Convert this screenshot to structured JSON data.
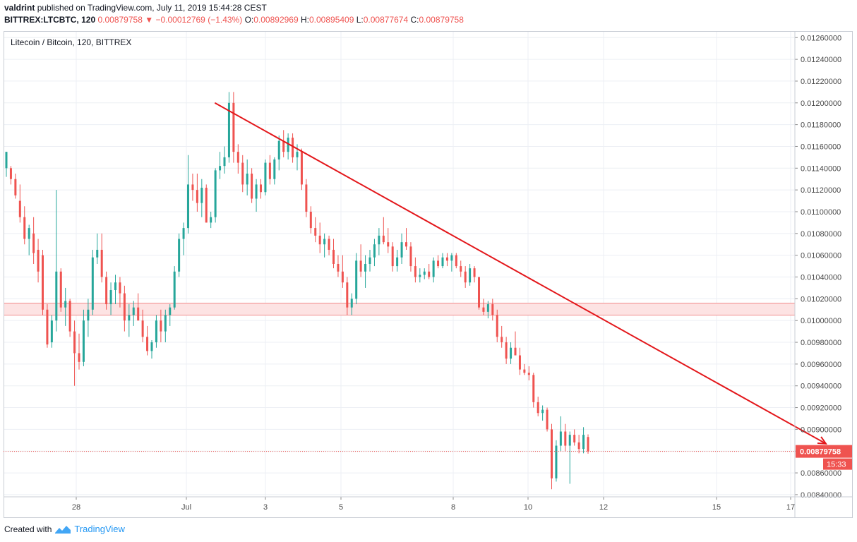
{
  "header": {
    "author": "valdrint",
    "published": "published on TradingView.com, July 11, 2019 15:44:28 CEST",
    "symbol": "BITTREX:LTCBTC, 120",
    "last": "0.00879758",
    "change_arrow": "▼",
    "change": "−0.00012769 (−1.43%)",
    "o_label": "O:",
    "o_value": "0.00892969",
    "h_label": "H:",
    "h_value": "0.00895409",
    "l_label": "L:",
    "l_value": "0.00877674",
    "c_label": "C:",
    "c_value": "0.00879758"
  },
  "footer": {
    "created_with": "Created with",
    "brand": "TradingView",
    "logo_icon": "tradingview-logo-icon"
  },
  "colors": {
    "up": "#26a69a",
    "down": "#ef5350",
    "trendline": "#e3171b",
    "zone_fill": "#fde3e3",
    "zone_border": "#f28b8b",
    "grid": "#eceff4",
    "axis_text": "#4a4a4a"
  },
  "chart_data": {
    "type": "candlestick",
    "title": "Litecoin / Bitcoin, 120, BITTREX",
    "x_ticks": [
      "28",
      "Jul",
      "3",
      "5",
      "8",
      "10",
      "12",
      "15",
      "17"
    ],
    "y_ticks": [
      "0.00840000",
      "0.00860000",
      "0.00880000",
      "0.00900000",
      "0.00920000",
      "0.00940000",
      "0.00960000",
      "0.00980000",
      "0.01000000",
      "0.01020000",
      "0.01040000",
      "0.01060000",
      "0.01080000",
      "0.01100000",
      "0.01120000",
      "0.01140000",
      "0.01160000",
      "0.01180000",
      "0.01200000",
      "0.01220000",
      "0.01240000",
      "0.01260000"
    ],
    "ylim": [
      0.00838,
      0.01266
    ],
    "current_price_label": "0.00879758",
    "countdown_label": "15:33",
    "current_price": 0.00879758,
    "resistance_zone": [
      0.01005,
      0.01016
    ],
    "trendline": {
      "start_tick": 1.36,
      "start_value": 0.012,
      "end_tick": 8.0,
      "end_value": 0.00892
    },
    "series": [
      [
        0.0114,
        0.01155,
        0.01132,
        0.01155
      ],
      [
        0.0114,
        0.01142,
        0.01125,
        0.0113
      ],
      [
        0.0113,
        0.01135,
        0.01112,
        0.01115
      ],
      [
        0.0111,
        0.01125,
        0.0109,
        0.01095
      ],
      [
        0.01095,
        0.01105,
        0.0107,
        0.01075
      ],
      [
        0.01075,
        0.01088,
        0.0106,
        0.01085
      ],
      [
        0.0108,
        0.01095,
        0.01052,
        0.01062
      ],
      [
        0.01065,
        0.01075,
        0.01035,
        0.01045
      ],
      [
        0.0106,
        0.01065,
        0.01005,
        0.0101
      ],
      [
        0.0101,
        0.01015,
        0.00975,
        0.00978
      ],
      [
        0.0098,
        0.01005,
        0.00975,
        0.01
      ],
      [
        0.01,
        0.0112,
        0.0099,
        0.01045
      ],
      [
        0.01045,
        0.01048,
        0.01008,
        0.01012
      ],
      [
        0.01012,
        0.0103,
        0.00995,
        0.01018
      ],
      [
        0.01018,
        0.0102,
        0.00985,
        0.0099
      ],
      [
        0.0099,
        0.01,
        0.0094,
        0.0097
      ],
      [
        0.0097,
        0.00988,
        0.00955,
        0.00962
      ],
      [
        0.00962,
        0.0101,
        0.00958,
        0.01
      ],
      [
        0.01,
        0.0102,
        0.00985,
        0.0101
      ],
      [
        0.0101,
        0.01065,
        0.01005,
        0.01058
      ],
      [
        0.01058,
        0.0108,
        0.01052,
        0.01065
      ],
      [
        0.01065,
        0.0108,
        0.01035,
        0.0104
      ],
      [
        0.0104,
        0.01045,
        0.0101,
        0.01015
      ],
      [
        0.01015,
        0.01035,
        0.01005,
        0.01028
      ],
      [
        0.01028,
        0.01042,
        0.01015,
        0.01035
      ],
      [
        0.01035,
        0.0104,
        0.01012,
        0.01025
      ],
      [
        0.01025,
        0.01032,
        0.0099,
        0.01
      ],
      [
        0.01,
        0.01015,
        0.00985,
        0.01005
      ],
      [
        0.01005,
        0.01018,
        0.00995,
        0.01012
      ],
      [
        0.01012,
        0.01025,
        0.01002,
        0.01
      ],
      [
        0.01,
        0.0101,
        0.0098,
        0.00985
      ],
      [
        0.00985,
        0.00995,
        0.00968,
        0.00972
      ],
      [
        0.00972,
        0.00982,
        0.00965,
        0.0098
      ],
      [
        0.0098,
        0.01005,
        0.00975,
        0.01
      ],
      [
        0.01,
        0.0101,
        0.0098,
        0.0099
      ],
      [
        0.0099,
        0.0101,
        0.0098,
        0.01005
      ],
      [
        0.01005,
        0.01015,
        0.00995,
        0.01012
      ],
      [
        0.01012,
        0.0105,
        0.0101,
        0.01045
      ],
      [
        0.01045,
        0.0108,
        0.0104,
        0.01075
      ],
      [
        0.01075,
        0.0109,
        0.0106,
        0.01085
      ],
      [
        0.01085,
        0.01152,
        0.0108,
        0.01125
      ],
      [
        0.01125,
        0.01135,
        0.0111,
        0.0112
      ],
      [
        0.0112,
        0.01135,
        0.011,
        0.01108
      ],
      [
        0.01108,
        0.0113,
        0.01095,
        0.01122
      ],
      [
        0.01122,
        0.01125,
        0.0109,
        0.0109
      ],
      [
        0.0109,
        0.011,
        0.01085,
        0.01095
      ],
      [
        0.01095,
        0.0114,
        0.0109,
        0.01138
      ],
      [
        0.01138,
        0.01155,
        0.0113,
        0.01142
      ],
      [
        0.01142,
        0.0116,
        0.01135,
        0.0115
      ],
      [
        0.0115,
        0.0121,
        0.01145,
        0.012
      ],
      [
        0.012,
        0.0121,
        0.01145,
        0.01155
      ],
      [
        0.01155,
        0.01162,
        0.01135,
        0.01145
      ],
      [
        0.01145,
        0.01152,
        0.01118,
        0.01125
      ],
      [
        0.01125,
        0.01148,
        0.01115,
        0.01135
      ],
      [
        0.01135,
        0.0114,
        0.01108,
        0.01112
      ],
      [
        0.01112,
        0.0113,
        0.011,
        0.01125
      ],
      [
        0.01125,
        0.0113,
        0.01112,
        0.01118
      ],
      [
        0.01118,
        0.01148,
        0.01115,
        0.01145
      ],
      [
        0.01145,
        0.01152,
        0.01125,
        0.0113
      ],
      [
        0.0113,
        0.0115,
        0.01125,
        0.01148
      ],
      [
        0.01148,
        0.0117,
        0.01138,
        0.01165
      ],
      [
        0.01165,
        0.01175,
        0.0115,
        0.01155
      ],
      [
        0.01155,
        0.01172,
        0.01148,
        0.01168
      ],
      [
        0.01168,
        0.01172,
        0.01145,
        0.0115
      ],
      [
        0.0115,
        0.01162,
        0.01138,
        0.01155
      ],
      [
        0.01155,
        0.01158,
        0.0112,
        0.01125
      ],
      [
        0.01125,
        0.0113,
        0.01095,
        0.011
      ],
      [
        0.011,
        0.01105,
        0.0108,
        0.01085
      ],
      [
        0.01085,
        0.01095,
        0.01072,
        0.01078
      ],
      [
        0.01078,
        0.0109,
        0.01062,
        0.0107
      ],
      [
        0.0107,
        0.0108,
        0.01058,
        0.01075
      ],
      [
        0.01075,
        0.01078,
        0.0106,
        0.01065
      ],
      [
        0.01065,
        0.01075,
        0.01048,
        0.01052
      ],
      [
        0.01052,
        0.0106,
        0.0104,
        0.01045
      ],
      [
        0.01045,
        0.0106,
        0.0103,
        0.01035
      ],
      [
        0.01035,
        0.0104,
        0.01005,
        0.01012
      ],
      [
        0.01012,
        0.01025,
        0.01005,
        0.0102
      ],
      [
        0.0102,
        0.01062,
        0.01015,
        0.01055
      ],
      [
        0.01055,
        0.0107,
        0.0104,
        0.01045
      ],
      [
        0.01045,
        0.0106,
        0.0103,
        0.01052
      ],
      [
        0.01052,
        0.01065,
        0.01045,
        0.01058
      ],
      [
        0.01058,
        0.01075,
        0.0105,
        0.0107
      ],
      [
        0.0107,
        0.01085,
        0.0106,
        0.01078
      ],
      [
        0.01078,
        0.01095,
        0.0107,
        0.01072
      ],
      [
        0.01072,
        0.01085,
        0.01062,
        0.01068
      ],
      [
        0.01068,
        0.01072,
        0.01045,
        0.0105
      ],
      [
        0.0105,
        0.01065,
        0.01045,
        0.01058
      ],
      [
        0.01058,
        0.0108,
        0.01052,
        0.01072
      ],
      [
        0.01072,
        0.01085,
        0.01065,
        0.01068
      ],
      [
        0.01068,
        0.01072,
        0.01045,
        0.0105
      ],
      [
        0.0105,
        0.01058,
        0.01035,
        0.0104
      ],
      [
        0.0104,
        0.01048,
        0.01035,
        0.01042
      ],
      [
        0.01042,
        0.01048,
        0.01038,
        0.01045
      ],
      [
        0.01045,
        0.01052,
        0.01038,
        0.0104
      ],
      [
        0.0104,
        0.01058,
        0.01035,
        0.01055
      ],
      [
        0.01055,
        0.0106,
        0.01048,
        0.0105
      ],
      [
        0.0105,
        0.01062,
        0.01048,
        0.01058
      ],
      [
        0.01058,
        0.01062,
        0.0105,
        0.01055
      ],
      [
        0.01055,
        0.01062,
        0.01045,
        0.0106
      ],
      [
        0.0106,
        0.01062,
        0.01048,
        0.0105
      ],
      [
        0.0105,
        0.01055,
        0.0104,
        0.01045
      ],
      [
        0.01045,
        0.0105,
        0.0103,
        0.01035
      ],
      [
        0.01035,
        0.01052,
        0.01032,
        0.01048
      ],
      [
        0.01048,
        0.0105,
        0.01035,
        0.0104
      ],
      [
        0.0104,
        0.0104,
        0.0101,
        0.01012
      ],
      [
        0.01012,
        0.0102,
        0.01005,
        0.01008
      ],
      [
        0.01008,
        0.01018,
        0.01002,
        0.01015
      ],
      [
        0.01015,
        0.0102,
        0.01,
        0.01005
      ],
      [
        0.01005,
        0.0101,
        0.0098,
        0.00985
      ],
      [
        0.00985,
        0.00995,
        0.00975,
        0.0098
      ],
      [
        0.0098,
        0.00985,
        0.0096,
        0.00965
      ],
      [
        0.00965,
        0.0098,
        0.0096,
        0.00975
      ],
      [
        0.00975,
        0.0099,
        0.0097,
        0.00968
      ],
      [
        0.00968,
        0.00975,
        0.0095,
        0.00955
      ],
      [
        0.00955,
        0.0096,
        0.0095,
        0.00952
      ],
      [
        0.00952,
        0.00958,
        0.00945,
        0.0095
      ],
      [
        0.0095,
        0.00952,
        0.0092,
        0.00925
      ],
      [
        0.00925,
        0.0093,
        0.00912,
        0.00915
      ],
      [
        0.00915,
        0.00922,
        0.00908,
        0.00918
      ],
      [
        0.00918,
        0.0092,
        0.00898,
        0.009
      ],
      [
        0.009,
        0.00905,
        0.00845,
        0.00855
      ],
      [
        0.00855,
        0.0089,
        0.00852,
        0.00885
      ],
      [
        0.00885,
        0.00912,
        0.0088,
        0.00898
      ],
      [
        0.00898,
        0.00905,
        0.0088,
        0.00885
      ],
      [
        0.00885,
        0.00898,
        0.0085,
        0.00895
      ],
      [
        0.00895,
        0.009,
        0.00885,
        0.00888
      ],
      [
        0.00888,
        0.00895,
        0.00878,
        0.00882
      ],
      [
        0.00882,
        0.00902,
        0.00878,
        0.00895
      ],
      [
        0.00892969,
        0.00895409,
        0.00877674,
        0.00879758
      ]
    ]
  }
}
